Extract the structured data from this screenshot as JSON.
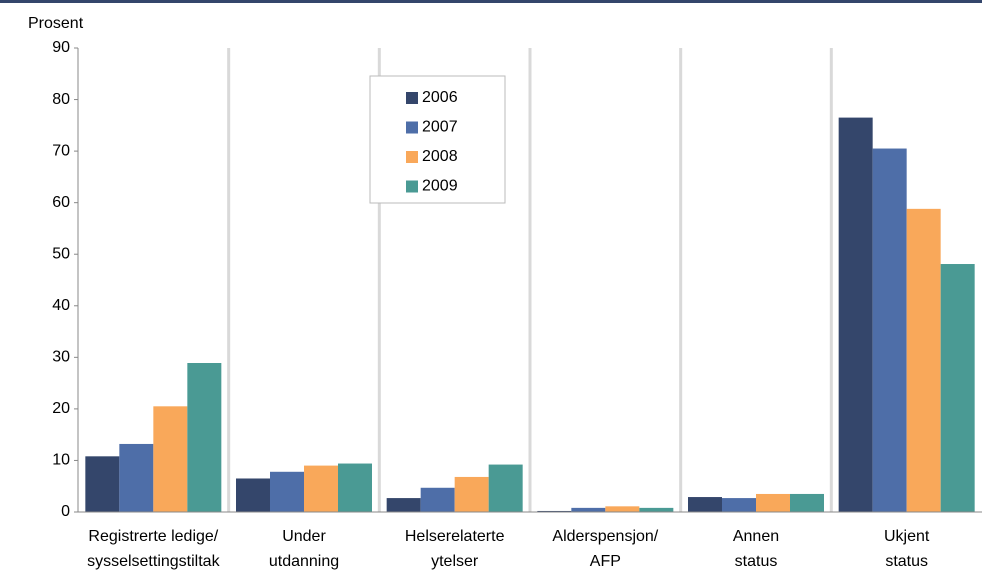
{
  "chart_data": {
    "type": "bar",
    "y_label": "Prosent",
    "categories": [
      [
        "Registrerte ledige/",
        "sysselsettingstiltak"
      ],
      [
        "Under",
        "utdanning"
      ],
      [
        "Helserelaterte",
        "ytelser"
      ],
      [
        "Alderspensjon/",
        "AFP"
      ],
      [
        "Annen",
        "status"
      ],
      [
        "Ukjent",
        "status"
      ]
    ],
    "series": [
      {
        "name": "2006",
        "color": "#34466b",
        "values": [
          10.8,
          6.5,
          2.7,
          0.2,
          2.9,
          76.5
        ]
      },
      {
        "name": "2007",
        "color": "#4e6ea8",
        "values": [
          13.2,
          7.8,
          4.7,
          0.8,
          2.7,
          70.5
        ]
      },
      {
        "name": "2008",
        "color": "#f9a85a",
        "values": [
          20.5,
          9.0,
          6.8,
          1.1,
          3.5,
          58.8
        ]
      },
      {
        "name": "2009",
        "color": "#4a9a94",
        "values": [
          28.9,
          9.4,
          9.2,
          0.8,
          3.5,
          48.1
        ]
      }
    ],
    "ylim": [
      0,
      90
    ],
    "yticks": [
      0,
      10,
      20,
      30,
      40,
      50,
      60,
      70,
      80,
      90
    ],
    "grid": false,
    "legend": "top"
  }
}
